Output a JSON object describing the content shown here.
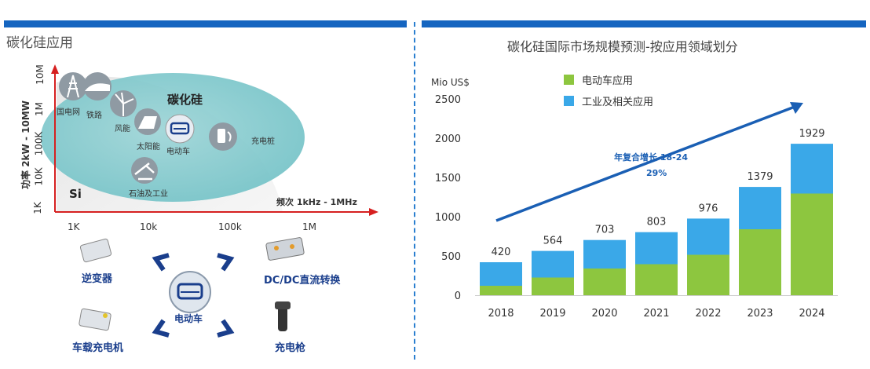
{
  "left_panel": {
    "title": "碳化硅应用",
    "y_axis_label": "功率 2kW - 10MW",
    "y_ticks": [
      "10M",
      "1M",
      "100K",
      "10K",
      "1K"
    ],
    "x_ticks": [
      "1K",
      "10k",
      "100k",
      "1M"
    ],
    "x_axis_label": "频次 1kHz - 1MHz",
    "region_sic": "碳化硅",
    "region_si": "Si",
    "app_icons": {
      "grid": "国电网",
      "rail": "铁路",
      "wind": "风能",
      "solar": "太阳能",
      "ev": "电动车",
      "charger": "充电桩",
      "industrial": "石油及工业"
    },
    "ev_diagram": {
      "center": "电动车",
      "inverter": "逆变器",
      "dcdc": "DC/DC直流转换",
      "obc": "车载充电机",
      "charging_gun": "充电枪"
    }
  },
  "chart_data": {
    "type": "bar",
    "title": "碳化硅国际市场规模预测-按应用领域划分",
    "ylabel": "Mio US$",
    "ylim": [
      0,
      2500
    ],
    "yticks": [
      0,
      500,
      1000,
      1500,
      2000,
      2500
    ],
    "categories": [
      "2018",
      "2019",
      "2020",
      "2021",
      "2022",
      "2023",
      "2024"
    ],
    "totals": [
      420,
      564,
      703,
      803,
      976,
      1379,
      1929
    ],
    "series": [
      {
        "name": "电动车应用",
        "color": "#8dc63f",
        "values": [
          120,
          225,
          340,
          395,
          515,
          840,
          1295
        ]
      },
      {
        "name": "工业及相关应用",
        "color": "#3aa8e8",
        "values": [
          300,
          339,
          363,
          408,
          461,
          539,
          634
        ]
      }
    ],
    "annotation_line1": "年复合增长 18-24",
    "annotation_line2": "29%",
    "grid": false,
    "legend_position": "top"
  }
}
